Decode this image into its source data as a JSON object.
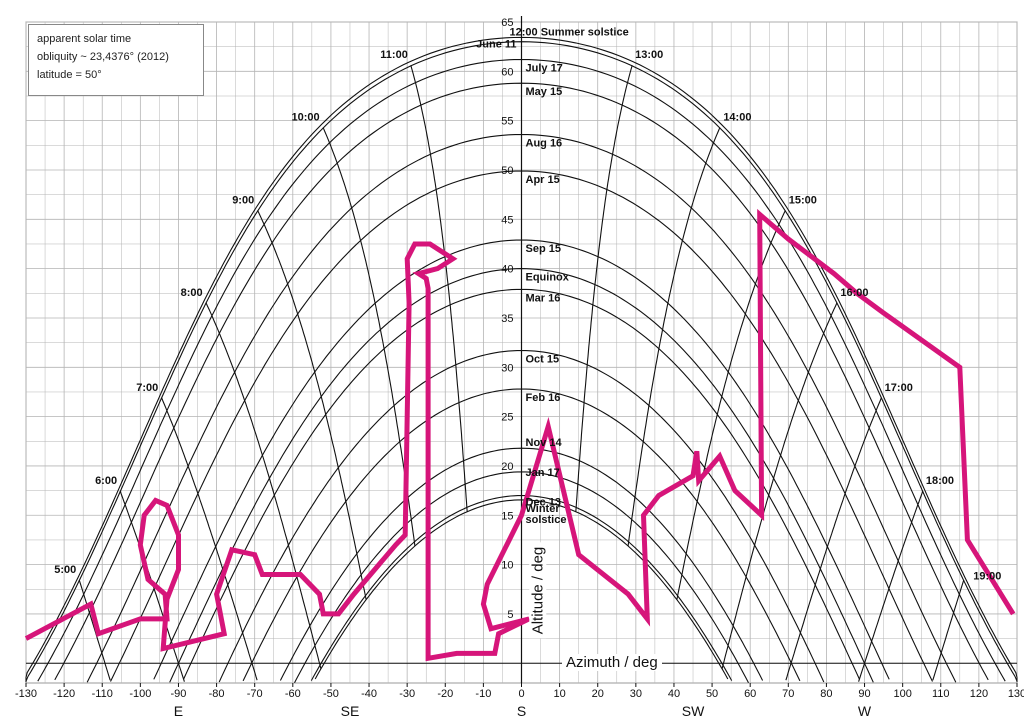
{
  "notes": [
    "apparent solar time",
    "obliquity ~ 23,4376° (2012)",
    "latitude = 50°"
  ],
  "chart_data": {
    "type": "line",
    "title": "",
    "xlabel": "Azimuth / deg",
    "ylabel": "Altitude / deg",
    "xlim": [
      -130,
      130
    ],
    "ylim": [
      -2,
      65
    ],
    "x_ticks": [
      -130,
      -120,
      -110,
      -100,
      -90,
      -80,
      -70,
      -60,
      -50,
      -40,
      -30,
      -20,
      -10,
      0,
      10,
      20,
      30,
      40,
      50,
      60,
      70,
      80,
      90,
      100,
      110,
      120,
      130
    ],
    "y_ticks": [
      5,
      10,
      15,
      20,
      25,
      30,
      35,
      40,
      45,
      50,
      55,
      60,
      65
    ],
    "compass_labels": [
      {
        "label": "E",
        "x": -90
      },
      {
        "label": "SE",
        "x": -45
      },
      {
        "label": "S",
        "x": 0
      },
      {
        "label": "SW",
        "x": 45
      },
      {
        "label": "W",
        "x": 90
      }
    ],
    "grid": true,
    "latitude_deg": 50,
    "day_curves": [
      {
        "label": "12:00 Summer solstice",
        "declination": 23.44
      },
      {
        "label": "June 11",
        "declination": 23.0
      },
      {
        "label": "July 17",
        "declination": 21.2
      },
      {
        "label": "May 15",
        "declination": 18.8
      },
      {
        "label": "Aug 16",
        "declination": 13.6
      },
      {
        "label": "Apr 15",
        "declination": 9.9
      },
      {
        "label": "Sep 15",
        "declination": 2.9
      },
      {
        "label": "Equinox",
        "declination": 0
      },
      {
        "label": "Mar 16",
        "declination": -2.1
      },
      {
        "label": "Oct 15",
        "declination": -8.3
      },
      {
        "label": "Feb 16",
        "declination": -12.2
      },
      {
        "label": "Nov 14",
        "declination": -18.2
      },
      {
        "label": "Jan 17",
        "declination": -20.6
      },
      {
        "label": "Dec 13",
        "declination": -23.0
      },
      {
        "label": "Winter solstice",
        "declination": -23.44
      }
    ],
    "hour_lines": [
      {
        "label": "5:00",
        "hour": 5
      },
      {
        "label": "6:00",
        "hour": 6
      },
      {
        "label": "7:00",
        "hour": 7
      },
      {
        "label": "8:00",
        "hour": 8
      },
      {
        "label": "9:00",
        "hour": 9
      },
      {
        "label": "10:00",
        "hour": 10
      },
      {
        "label": "11:00",
        "hour": 11
      },
      {
        "label": "13:00",
        "hour": 13
      },
      {
        "label": "14:00",
        "hour": 14
      },
      {
        "label": "15:00",
        "hour": 15
      },
      {
        "label": "16:00",
        "hour": 16
      },
      {
        "label": "17:00",
        "hour": 17
      },
      {
        "label": "18:00",
        "hour": 18
      },
      {
        "label": "19:00",
        "hour": 19
      }
    ],
    "horizon": {
      "name": "",
      "color": "#d6157a",
      "points": [
        [
          -130,
          2.5
        ],
        [
          -113,
          6
        ],
        [
          -111,
          3
        ],
        [
          -100,
          4.5
        ],
        [
          -93,
          4.5
        ],
        [
          -93.5,
          7
        ],
        [
          -98,
          8.5
        ],
        [
          -100,
          12
        ],
        [
          -99,
          15
        ],
        [
          -96,
          16.5
        ],
        [
          -93,
          16
        ],
        [
          -90,
          13
        ],
        [
          -90,
          9.5
        ],
        [
          -93,
          6.5
        ],
        [
          -94,
          1.5
        ],
        [
          -78,
          3
        ],
        [
          -80,
          7
        ],
        [
          -76,
          11.5
        ],
        [
          -70,
          11
        ],
        [
          -68,
          9
        ],
        [
          -58,
          9
        ],
        [
          -53,
          7
        ],
        [
          -52,
          5
        ],
        [
          -48,
          5
        ],
        [
          -44,
          7
        ],
        [
          -33,
          12
        ],
        [
          -30.5,
          13
        ],
        [
          -29.5,
          36.5
        ],
        [
          -30,
          41
        ],
        [
          -28,
          42.5
        ],
        [
          -24,
          42.5
        ],
        [
          -18,
          41
        ],
        [
          -22,
          40
        ],
        [
          -27,
          39.5
        ],
        [
          -25,
          39
        ],
        [
          -24.5,
          38
        ],
        [
          -24.5,
          0.5
        ],
        [
          -17,
          1
        ],
        [
          -7,
          1
        ],
        [
          -6,
          3
        ],
        [
          2,
          4.5
        ],
        [
          -8,
          3.5
        ],
        [
          -10,
          6
        ],
        [
          -9,
          8
        ],
        [
          0,
          15
        ],
        [
          7,
          24
        ],
        [
          15,
          11
        ],
        [
          28,
          7
        ],
        [
          33,
          4.5
        ],
        [
          32,
          15
        ],
        [
          36,
          17
        ],
        [
          45,
          19
        ],
        [
          46,
          21.5
        ],
        [
          46.5,
          18.5
        ],
        [
          52,
          21
        ],
        [
          56,
          17.5
        ],
        [
          63,
          15
        ],
        [
          62.5,
          45.5
        ],
        [
          70,
          43
        ],
        [
          82,
          39.5
        ],
        [
          88,
          37.5
        ],
        [
          95,
          35.5
        ],
        [
          115,
          30
        ],
        [
          117,
          12.5
        ],
        [
          129,
          5
        ]
      ]
    }
  }
}
